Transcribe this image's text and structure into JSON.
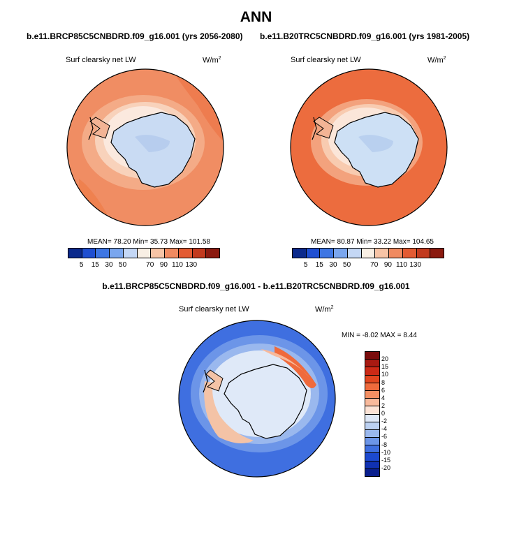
{
  "title": "ANN",
  "plots": {
    "p1": {
      "subtitle": "b.e11.BRCP85C5CNBDRD.f09_g16.001 (yrs 2056-2080)",
      "variable": "Surf clearsky net LW",
      "unit": "W/m",
      "unit_exp": "2",
      "stats": "MEAN=  78.20  Min=  35.73  Max= 101.58"
    },
    "p2": {
      "subtitle": "b.e11.B20TRC5CNBDRD.f09_g16.001 (yrs 1981-2005)",
      "variable": "Surf clearsky net LW",
      "unit": "W/m",
      "unit_exp": "2",
      "stats": "MEAN=  80.87  Min=  33.22  Max= 104.65"
    },
    "diff": {
      "subtitle": "b.e11.BRCP85C5CNBDRD.f09_g16.001 - b.e11.B20TRC5CNBDRD.f09_g16.001",
      "variable": "Surf clearsky net LW",
      "unit": "W/m",
      "unit_exp": "2",
      "stats": "MIN =  -8.02 MAX =   8.44"
    }
  },
  "chart_data": [
    {
      "type": "heatmap",
      "projection": "south-polar-stereographic",
      "title": "b.e11.BRCP85C5CNBDRD.f09_g16.001 (yrs 2056-2080)",
      "variable": "Surf clearsky net LW",
      "units": "W/m2",
      "mean": 78.2,
      "min": 35.73,
      "max": 101.58,
      "levels": [
        5,
        15,
        30,
        50,
        70,
        90,
        110,
        130
      ],
      "colors": [
        "#0b2a8c",
        "#1f4fd1",
        "#3e76e3",
        "#7aa6ee",
        "#c4d7f5",
        "#f8efe4",
        "#f7c4a6",
        "#f08a60",
        "#e35b33",
        "#c23a1e",
        "#8b1a0f"
      ]
    },
    {
      "type": "heatmap",
      "projection": "south-polar-stereographic",
      "title": "b.e11.B20TRC5CNBDRD.f09_g16.001 (yrs 1981-2005)",
      "variable": "Surf clearsky net LW",
      "units": "W/m2",
      "mean": 80.87,
      "min": 33.22,
      "max": 104.65,
      "levels": [
        5,
        15,
        30,
        50,
        70,
        90,
        110,
        130
      ],
      "colors": [
        "#0b2a8c",
        "#1f4fd1",
        "#3e76e3",
        "#7aa6ee",
        "#c4d7f5",
        "#f8efe4",
        "#f7c4a6",
        "#f08a60",
        "#e35b33",
        "#c23a1e",
        "#8b1a0f"
      ]
    },
    {
      "type": "heatmap",
      "projection": "south-polar-stereographic",
      "title": "b.e11.BRCP85C5CNBDRD.f09_g16.001 - b.e11.B20TRC5CNBDRD.f09_g16.001",
      "variable": "Surf clearsky net LW",
      "units": "W/m2",
      "min": -8.02,
      "max": 8.44,
      "levels": [
        20,
        15,
        10,
        8,
        6,
        4,
        2,
        0,
        -2,
        -4,
        -6,
        -8,
        -10,
        -15,
        -20
      ],
      "colors": [
        "#7a0c0c",
        "#a81a12",
        "#cc2a16",
        "#e2461f",
        "#ef6a3c",
        "#f48f63",
        "#f8b99b",
        "#fce3d6",
        "#dfe9f8",
        "#bcd1f2",
        "#9ab8ee",
        "#6c95e8",
        "#3f6fe0",
        "#1c49cf",
        "#1031b3",
        "#0a1f8e"
      ]
    }
  ]
}
